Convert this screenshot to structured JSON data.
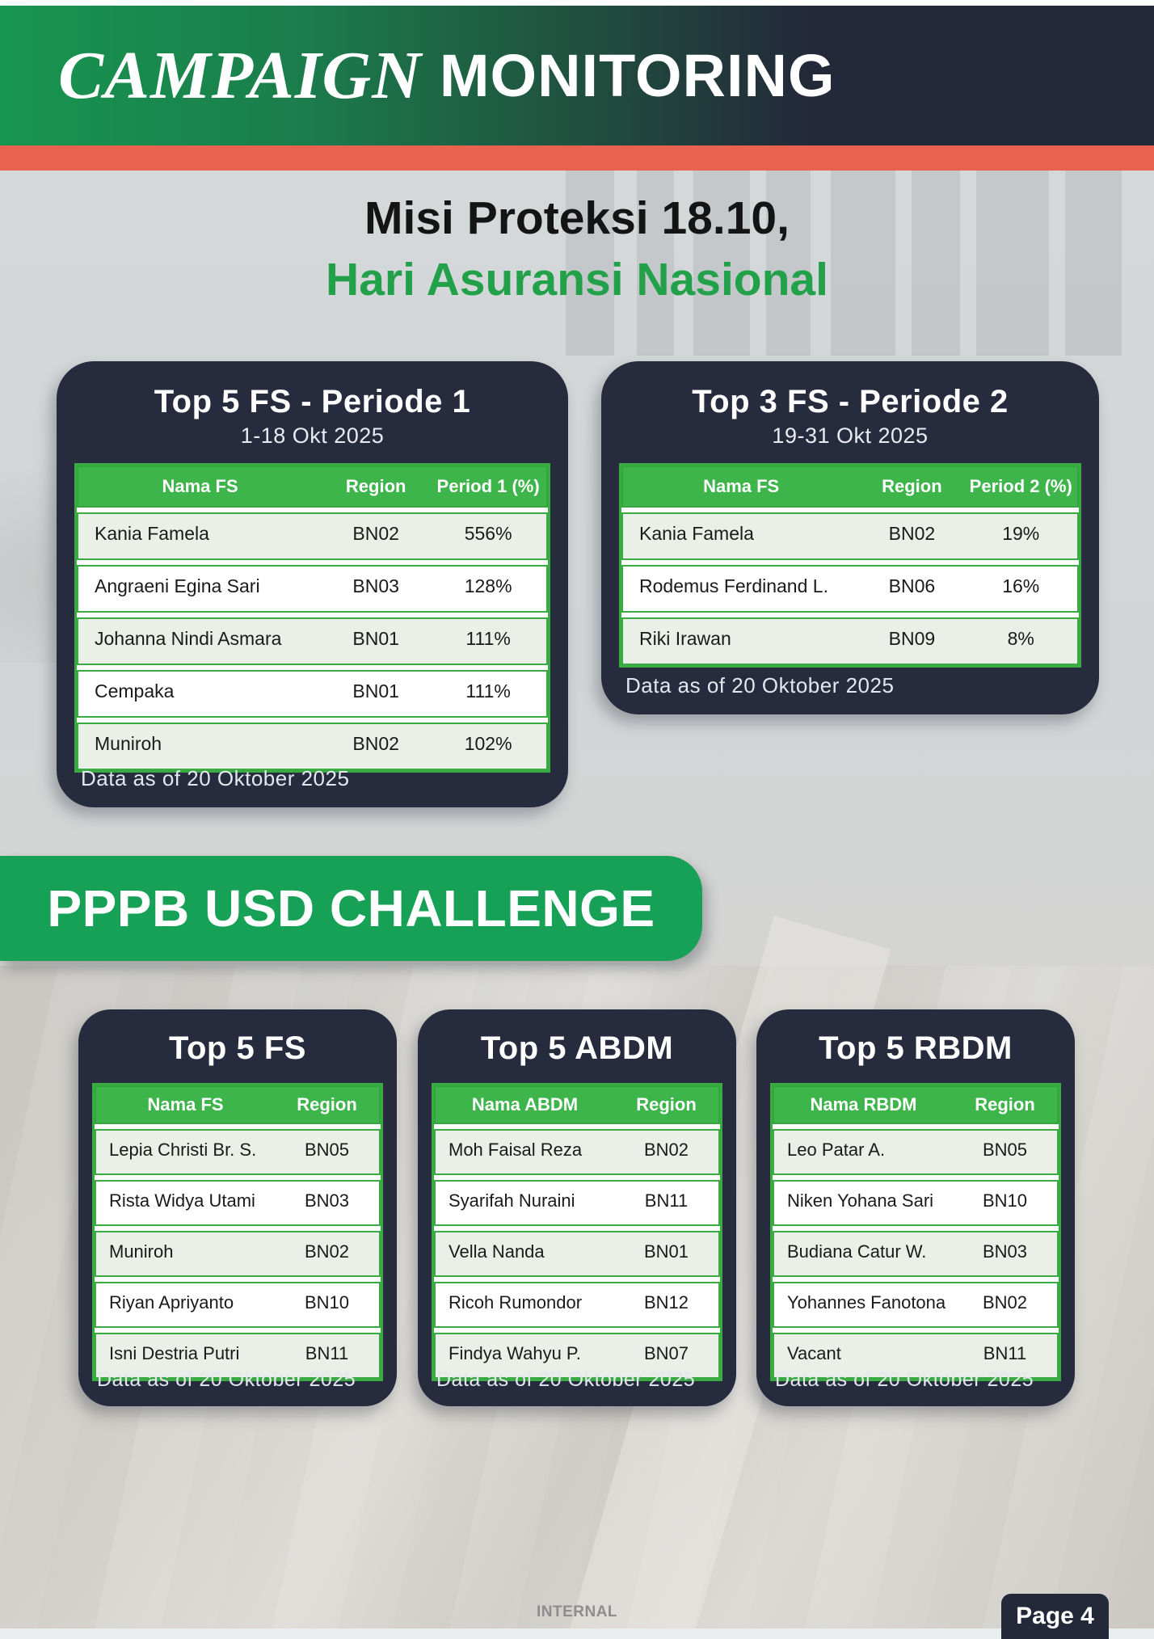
{
  "header": {
    "campaign": "CAMPAIGN",
    "monitoring": "MONITORING"
  },
  "title": {
    "line1": "Misi Proteksi 18.10,",
    "line2": "Hari Asuransi Nasional"
  },
  "top_cards": [
    {
      "title": "Top 5 FS - Periode 1",
      "subtitle": "1-18 Okt 2025",
      "columns": [
        "Nama FS",
        "Region",
        "Period 1 (%)"
      ],
      "rows": [
        [
          "Kania Famela",
          "BN02",
          "556%"
        ],
        [
          "Angraeni Egina Sari",
          "BN03",
          "128%"
        ],
        [
          "Johanna Nindi Asmara",
          "BN01",
          "111%"
        ],
        [
          "Cempaka",
          "BN01",
          "111%"
        ],
        [
          "Muniroh",
          "BN02",
          "102%"
        ]
      ],
      "footnote": "Data as of 20 Oktober 2025"
    },
    {
      "title": "Top 3 FS - Periode 2",
      "subtitle": "19-31 Okt 2025",
      "columns": [
        "Nama FS",
        "Region",
        "Period 2 (%)"
      ],
      "rows": [
        [
          "Kania Famela",
          "BN02",
          "19%"
        ],
        [
          "Rodemus Ferdinand L.",
          "BN06",
          "16%"
        ],
        [
          "Riki Irawan",
          "BN09",
          "8%"
        ]
      ],
      "footnote": "Data as of 20 Oktober 2025"
    }
  ],
  "banner": {
    "label": "PPPB USD CHALLENGE"
  },
  "bottom_cards": [
    {
      "title": "Top 5 FS",
      "columns": [
        "Nama FS",
        "Region"
      ],
      "rows": [
        [
          "Lepia Christi Br. S.",
          "BN05"
        ],
        [
          "Rista Widya Utami",
          "BN03"
        ],
        [
          "Muniroh",
          "BN02"
        ],
        [
          "Riyan Apriyanto",
          "BN10"
        ],
        [
          "Isni Destria Putri",
          "BN11"
        ]
      ],
      "footnote": "Data as of 20 Oktober 2025"
    },
    {
      "title": "Top 5 ABDM",
      "columns": [
        "Nama ABDM",
        "Region"
      ],
      "rows": [
        [
          "Moh Faisal Reza",
          "BN02"
        ],
        [
          "Syarifah Nuraini",
          "BN11"
        ],
        [
          "Vella Nanda",
          "BN01"
        ],
        [
          "Ricoh Rumondor",
          "BN12"
        ],
        [
          "Findya Wahyu P.",
          "BN07"
        ]
      ],
      "footnote": "Data as of 20 Oktober 2025"
    },
    {
      "title": "Top 5 RBDM",
      "columns": [
        "Nama RBDM",
        "Region"
      ],
      "rows": [
        [
          "Leo Patar A.",
          "BN05"
        ],
        [
          "Niken Yohana Sari",
          "BN10"
        ],
        [
          "Budiana Catur W.",
          "BN03"
        ],
        [
          "Yohannes Fanotona",
          "BN02"
        ],
        [
          "Vacant",
          "BN11"
        ]
      ],
      "footnote": "Data as of 20 Oktober 2025"
    }
  ],
  "footer": {
    "classification": "INTERNAL",
    "page_label": "Page 4"
  },
  "colors": {
    "header_green": "#17964f",
    "header_navy": "#232939",
    "card_navy": "#262c3d",
    "stripe_red": "#e96250",
    "banner_green": "#17a156",
    "title_green": "#23a14a",
    "table_header_green": "#3db54b",
    "table_border_green": "#3aab43",
    "row_tint": "#eaefe7"
  }
}
